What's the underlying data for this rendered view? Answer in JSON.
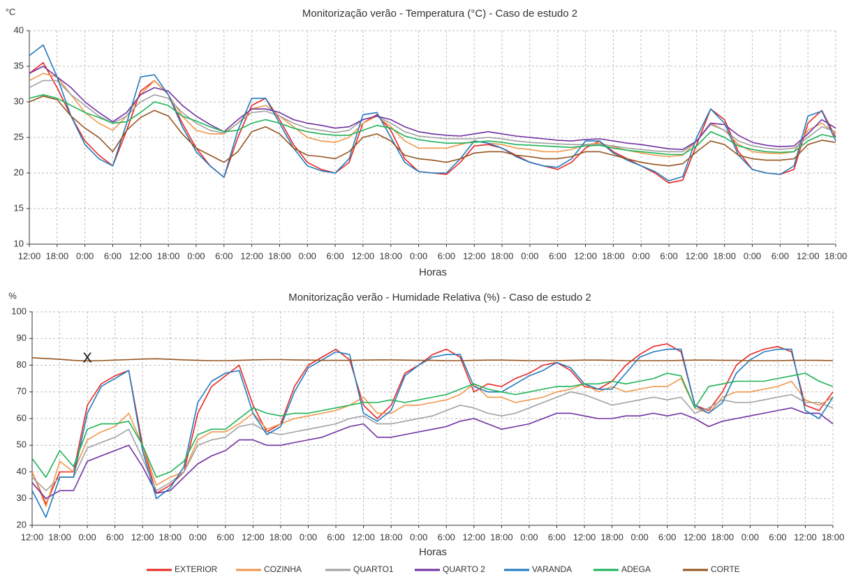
{
  "chart_data": [
    {
      "type": "line",
      "title": "Monitorização verão - Temperatura (°C) - Caso de estudo 2",
      "ylabel": "°C",
      "xlabel": "Horas",
      "categories": [
        "12:00",
        null,
        "18:00",
        null,
        "0:00",
        null,
        "6:00",
        null,
        "12:00",
        null,
        "18:00",
        null,
        "0:00",
        null,
        "6:00",
        null,
        "12:00",
        null,
        "18:00",
        null,
        "0:00",
        null,
        "6:00",
        null,
        "12:00",
        null,
        "18:00",
        null,
        "0:00",
        null,
        "6:00",
        null,
        "12:00",
        null,
        "18:00",
        null,
        "0:00",
        null,
        "6:00",
        null,
        "12:00",
        null,
        "18:00",
        null,
        "0:00",
        null,
        "6:00",
        null,
        "12:00",
        null,
        "18:00",
        null,
        "0:00",
        null,
        "6:00",
        null,
        "12:00",
        null,
        "18:00"
      ],
      "ylim": [
        10,
        40
      ],
      "yticks": [
        10,
        15,
        20,
        25,
        30,
        35,
        40
      ],
      "grid": true,
      "series": [
        {
          "color": "#e8251f",
          "values": [
            34,
            35.5,
            32,
            28,
            24.5,
            22.5,
            21,
            26,
            31.5,
            33,
            31,
            27,
            23.5,
            21,
            19.4,
            25,
            29.5,
            30.5,
            27.5,
            24,
            21.5,
            20.5,
            20,
            21.5,
            27,
            28.2,
            26,
            22,
            20.2,
            20,
            19.8,
            21.5,
            23.8,
            24,
            23.5,
            22.5,
            21.5,
            21,
            20.5,
            21.5,
            23.5,
            24.5,
            23,
            22,
            21,
            20,
            18.6,
            19,
            24,
            29,
            27.5,
            23,
            20.5,
            20,
            19.8,
            20.5,
            27,
            28.8,
            25
          ]
        },
        {
          "color": "#f0964a",
          "values": [
            33,
            34,
            33.5,
            31,
            28.5,
            27,
            26,
            28,
            31,
            33,
            31,
            28,
            26,
            25.5,
            25.5,
            27,
            29,
            29.5,
            28,
            26.5,
            25,
            24.5,
            24.3,
            25,
            27,
            28,
            26.5,
            24.5,
            23.5,
            23.5,
            23.5,
            24,
            24.5,
            24.2,
            24,
            23.5,
            23.3,
            23,
            23,
            23.3,
            24,
            24.2,
            23.7,
            23.2,
            22.8,
            22.5,
            22.3,
            22.5,
            24.5,
            27,
            26,
            24,
            23,
            22.8,
            22.7,
            23,
            26,
            27,
            25.5
          ]
        },
        {
          "color": "#a0a0a0",
          "values": [
            32,
            33,
            33,
            31,
            29.5,
            28,
            27,
            28,
            30,
            31,
            30.5,
            28.5,
            27,
            26,
            25.6,
            27,
            28.5,
            28.7,
            28,
            27,
            26.3,
            26,
            25.7,
            26,
            27.5,
            28,
            27,
            25.8,
            25.2,
            25,
            24.8,
            24.8,
            24.8,
            25,
            24.8,
            24.5,
            24.3,
            24.2,
            24.1,
            24,
            24,
            24,
            23.8,
            23.5,
            23.3,
            23.1,
            23,
            23,
            24.5,
            26.8,
            26,
            24.5,
            23.8,
            23.5,
            23.3,
            23.5,
            25,
            26.5,
            25.8
          ]
        },
        {
          "color": "#7030a0",
          "values": [
            34,
            35,
            33.5,
            32,
            30,
            28.5,
            27.2,
            28.5,
            31,
            32,
            31.5,
            29.5,
            28,
            26.8,
            25.8,
            27.5,
            29,
            29,
            28.5,
            27.5,
            27,
            26.7,
            26.3,
            26.5,
            27.5,
            28,
            27.5,
            26.5,
            25.8,
            25.5,
            25.3,
            25.2,
            25.5,
            25.8,
            25.5,
            25.2,
            25,
            24.8,
            24.6,
            24.5,
            24.7,
            24.8,
            24.5,
            24.2,
            24,
            23.7,
            23.4,
            23.3,
            24.5,
            27,
            26.8,
            25.3,
            24.3,
            23.9,
            23.7,
            23.8,
            25.5,
            27.5,
            26.3
          ]
        },
        {
          "color": "#1f7ac0",
          "values": [
            36.5,
            38,
            33.5,
            28,
            24,
            22,
            21,
            27,
            33.5,
            33.8,
            31,
            26.5,
            23,
            21,
            19.4,
            26,
            30.5,
            30.5,
            27,
            23.5,
            21,
            20.3,
            20,
            22,
            28.2,
            28.5,
            25,
            21.5,
            20.2,
            20,
            20,
            22,
            24.5,
            24.2,
            23.5,
            22.3,
            21.5,
            21,
            20.8,
            22,
            24.5,
            24.5,
            22.8,
            21.8,
            21,
            20.2,
            18.9,
            19.5,
            25,
            29,
            27,
            22.5,
            20.5,
            20,
            19.8,
            21,
            28,
            28.7,
            24.5
          ]
        },
        {
          "color": "#1db356",
          "values": [
            30.5,
            31,
            30.5,
            29.5,
            28.5,
            27.8,
            27,
            27.2,
            28.5,
            30,
            29.5,
            28,
            27.3,
            26.5,
            25.8,
            26,
            27,
            27.5,
            27,
            26.3,
            25.8,
            25.5,
            25.3,
            25.3,
            26,
            26.7,
            26.3,
            25.2,
            24.7,
            24.4,
            24.2,
            24.2,
            24.3,
            24.5,
            24.3,
            24,
            23.9,
            23.8,
            23.7,
            23.6,
            23.8,
            23.9,
            23.5,
            23.2,
            23,
            22.8,
            22.6,
            22.6,
            23.8,
            25.8,
            25,
            23.8,
            23.3,
            23,
            22.9,
            23,
            24.5,
            25.4,
            25
          ]
        },
        {
          "color": "#94531e",
          "values": [
            30,
            30.8,
            30.3,
            28,
            26.3,
            25,
            23,
            26,
            27.8,
            28.8,
            28,
            25.5,
            23.5,
            22.5,
            21.5,
            23,
            25.8,
            26.5,
            25.5,
            23.5,
            22.5,
            22.3,
            22,
            23,
            25,
            25.5,
            24.5,
            22.5,
            22,
            21.8,
            21.5,
            22,
            22.8,
            23,
            23,
            22.5,
            22.3,
            22,
            22,
            22.3,
            23,
            23,
            22.5,
            22,
            21.5,
            21.2,
            21,
            21.3,
            23,
            24.5,
            24,
            22.5,
            22,
            21.8,
            21.8,
            22,
            24,
            24.6,
            24.3
          ]
        }
      ]
    },
    {
      "type": "line",
      "title": "Monitorização verão - Humidade Relativa (%) - Caso de estudo 2",
      "ylabel": "%",
      "xlabel": "Horas",
      "annotations": [
        "X"
      ],
      "categories": [
        "12:00",
        null,
        "18:00",
        null,
        "0:00",
        null,
        "6:00",
        null,
        "12:00",
        null,
        "18:00",
        null,
        "0:00",
        null,
        "6:00",
        null,
        "12:00",
        null,
        "18:00",
        null,
        "0:00",
        null,
        "6:00",
        null,
        "12:00",
        null,
        "18:00",
        null,
        "0:00",
        null,
        "6:00",
        null,
        "12:00",
        null,
        "18:00",
        null,
        "0:00",
        null,
        "6:00",
        null,
        "12:00",
        null,
        "18:00",
        null,
        "0:00",
        null,
        "6:00",
        null,
        "12:00",
        null,
        "18:00",
        null,
        "0:00",
        null,
        "6:00",
        null,
        "12:00",
        null,
        "18:00"
      ],
      "ylim": [
        20,
        100
      ],
      "yticks": [
        20,
        30,
        40,
        50,
        60,
        70,
        80,
        90,
        100
      ],
      "grid": true,
      "series": [
        {
          "name": "EXTERIOR",
          "color": "#e8251f",
          "values": [
            40,
            28,
            40,
            40,
            65,
            73,
            76,
            78,
            50,
            32,
            35,
            40,
            62,
            72,
            76,
            80,
            65,
            55,
            58,
            72,
            80,
            83,
            86,
            82,
            65,
            60,
            65,
            77,
            80,
            84,
            86,
            83,
            70,
            73,
            72,
            75,
            77,
            80,
            81,
            78,
            72,
            71,
            74,
            80,
            84,
            87,
            88,
            85,
            65,
            63,
            70,
            80,
            84,
            86,
            87,
            85,
            65,
            63,
            70
          ]
        },
        {
          "name": "COZINHA",
          "color": "#f0964a",
          "values": [
            40,
            27,
            44,
            40,
            52,
            55,
            57,
            62,
            50,
            35,
            38,
            40,
            52,
            55,
            55,
            58,
            62,
            56,
            58,
            60,
            61,
            62,
            63,
            65,
            68,
            62,
            62,
            65,
            65,
            66,
            67,
            69,
            73,
            68,
            68,
            66,
            67,
            68,
            70,
            71,
            73,
            70,
            72,
            70,
            71,
            72,
            72,
            75,
            64,
            62,
            68,
            70,
            70,
            71,
            72,
            74,
            67,
            65,
            68
          ]
        },
        {
          "name": "QUARTO1",
          "color": "#a0a0a0",
          "values": [
            38,
            33,
            38,
            38,
            49,
            51,
            53,
            56,
            45,
            33,
            36,
            40,
            50,
            52,
            53,
            57,
            58,
            55,
            54,
            55,
            56,
            57,
            58,
            60,
            61,
            58,
            58,
            59,
            60,
            61,
            63,
            65,
            64,
            62,
            61,
            62,
            64,
            66,
            68,
            70,
            69,
            67,
            65,
            66,
            67,
            68,
            67,
            68,
            62,
            64,
            67,
            66,
            66,
            67,
            68,
            69,
            66,
            66,
            64
          ]
        },
        {
          "name": "QUARTO 2",
          "color": "#7030a0",
          "values": [
            36,
            30,
            33,
            33,
            44,
            46,
            48,
            50,
            42,
            32,
            33,
            38,
            43,
            46,
            48,
            52,
            52,
            50,
            50,
            51,
            52,
            53,
            55,
            57,
            58,
            53,
            53,
            54,
            55,
            56,
            57,
            59,
            60,
            58,
            56,
            57,
            58,
            60,
            62,
            62,
            61,
            60,
            60,
            61,
            61,
            62,
            61,
            62,
            60,
            57,
            59,
            60,
            61,
            62,
            63,
            64,
            62,
            62,
            58
          ]
        },
        {
          "name": "VARANDA",
          "color": "#1f7ac0",
          "values": [
            33,
            23,
            38,
            38,
            62,
            72,
            75,
            78,
            48,
            30,
            34,
            42,
            66,
            74,
            77,
            78,
            62,
            54,
            57,
            70,
            79,
            82,
            85,
            84,
            62,
            59,
            63,
            76,
            80,
            83,
            84,
            84,
            72,
            70,
            70,
            73,
            76,
            78,
            81,
            79,
            73,
            71,
            71,
            77,
            83,
            85,
            86,
            86,
            65,
            62,
            66,
            77,
            82,
            85,
            86,
            86,
            63,
            60,
            68
          ]
        },
        {
          "name": "ADEGA",
          "color": "#1db356",
          "values": [
            45,
            38,
            48,
            42,
            56,
            58,
            58,
            59,
            50,
            38,
            40,
            44,
            54,
            56,
            56,
            60,
            64,
            62,
            61,
            62,
            62,
            63,
            64,
            65,
            66,
            66,
            67,
            66,
            67,
            68,
            69,
            71,
            73,
            71,
            70,
            69,
            70,
            71,
            72,
            72,
            73,
            73,
            74,
            73,
            74,
            75,
            77,
            76,
            64,
            72,
            73,
            74,
            74,
            74,
            75,
            76,
            77,
            74,
            72
          ]
        },
        {
          "name": "CORTE",
          "color": "#94531e",
          "values": [
            82.8,
            82.5,
            82.2,
            81.8,
            81.6,
            81.7,
            81.9,
            82.1,
            82.3,
            82.4,
            82.2,
            82,
            81.8,
            81.7,
            81.7,
            81.8,
            82,
            82.1,
            82.1,
            82,
            81.9,
            81.8,
            81.8,
            81.8,
            81.9,
            82,
            82,
            81.9,
            81.8,
            81.8,
            81.7,
            81.7,
            81.8,
            81.9,
            81.9,
            81.8,
            81.7,
            81.7,
            81.7,
            81.8,
            81.9,
            81.9,
            81.8,
            81.7,
            81.7,
            81.7,
            81.7,
            81.8,
            81.9,
            81.9,
            81.8,
            81.8,
            81.7,
            81.7,
            81.7,
            81.8,
            81.8,
            81.8,
            81.7
          ]
        }
      ]
    }
  ]
}
